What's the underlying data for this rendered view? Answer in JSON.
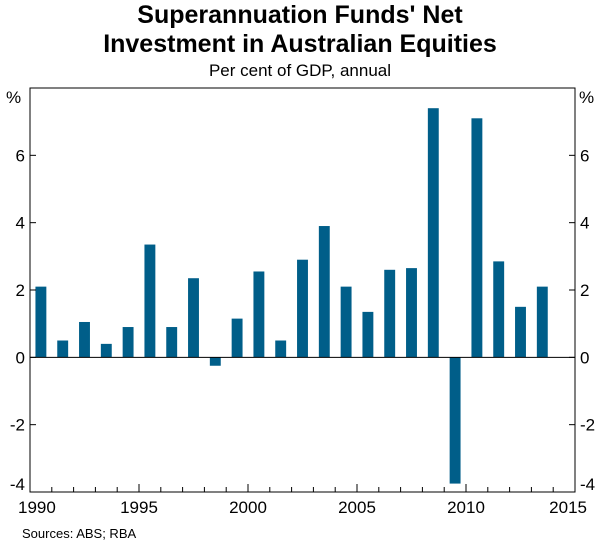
{
  "header": {
    "title_line1": "Superannuation Funds' Net",
    "title_line2": "Investment in Australian Equities",
    "subtitle": "Per cent of GDP, annual"
  },
  "axis": {
    "unit_left": "%",
    "unit_right": "%"
  },
  "footer": {
    "sources": "Sources: ABS; RBA"
  },
  "colors": {
    "bar": "#005E89",
    "zero_line": "#000000",
    "frame": "#000000"
  },
  "chart_data": {
    "type": "bar",
    "title": "Superannuation Funds' Net Investment in Australian Equities",
    "subtitle": "Per cent of GDP, annual",
    "ylabel": "%",
    "ylim": [
      -4,
      8
    ],
    "xlim": [
      1990,
      2015
    ],
    "y_ticks": [
      -4,
      -2,
      0,
      2,
      4,
      6
    ],
    "x_ticks": [
      1990,
      1995,
      2000,
      2005,
      2010,
      2015
    ],
    "grid": false,
    "legend": "none",
    "categories": [
      1990,
      1991,
      1992,
      1993,
      1994,
      1995,
      1996,
      1997,
      1998,
      1999,
      2000,
      2001,
      2002,
      2003,
      2004,
      2005,
      2006,
      2007,
      2008,
      2009,
      2010,
      2011,
      2012,
      2013
    ],
    "values": [
      2.1,
      0.5,
      1.05,
      0.4,
      0.9,
      3.35,
      0.9,
      2.35,
      -0.25,
      1.15,
      2.55,
      0.5,
      2.9,
      3.9,
      2.1,
      1.35,
      2.6,
      2.65,
      7.4,
      -3.75,
      7.1,
      2.85,
      1.5,
      2.1
    ]
  }
}
